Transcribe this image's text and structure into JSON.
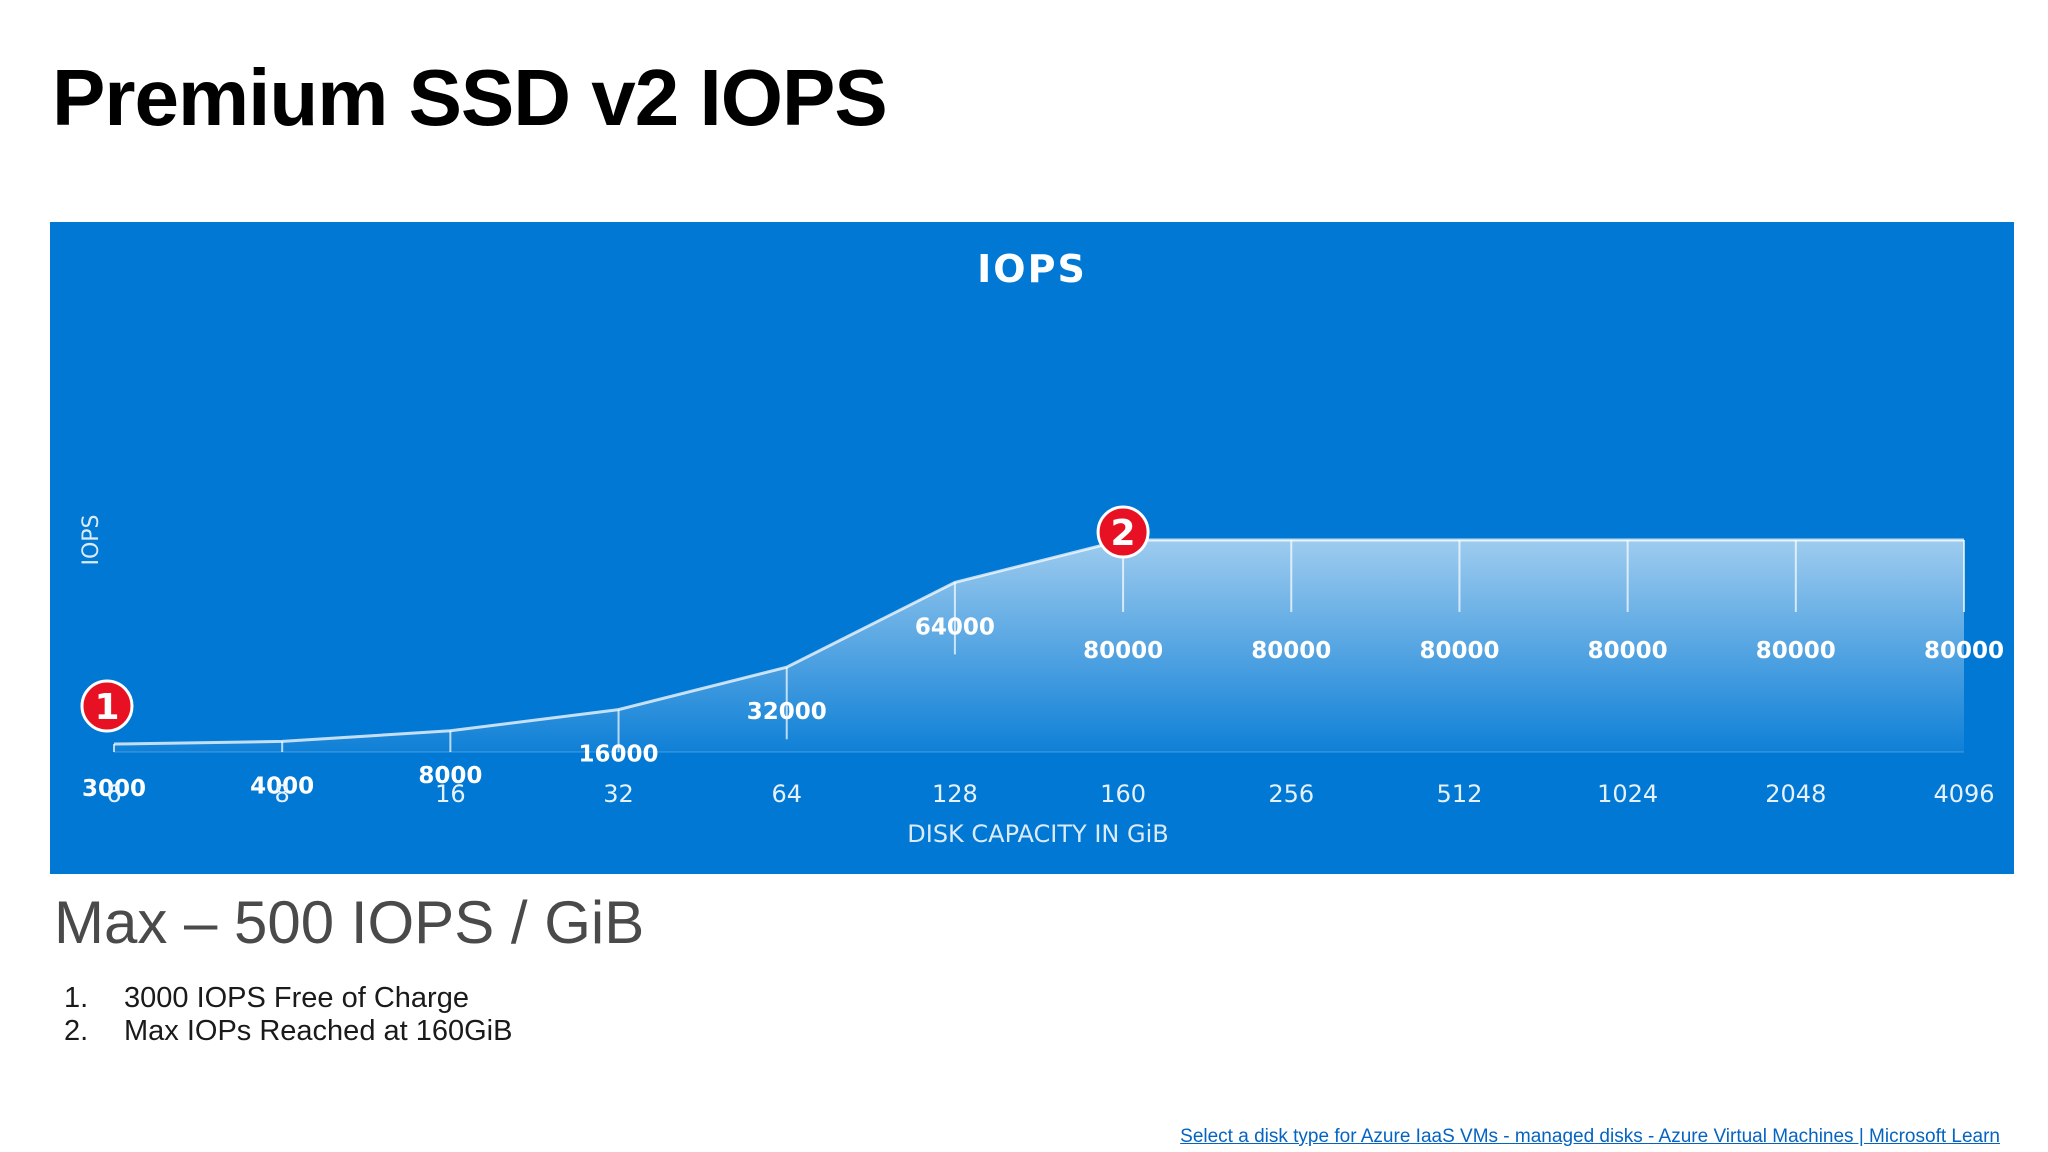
{
  "slide": {
    "title": "Premium SSD v2 IOPS",
    "subtitle": "Max – 500 IOPS / GiB",
    "notes": [
      {
        "number": "1.",
        "text": "3000 IOPS Free of Charge"
      },
      {
        "number": "2.",
        "text": "Max IOPs Reached at 160GiB"
      }
    ],
    "source_link": "Select a disk type for Azure IaaS VMs - managed disks - Azure Virtual Machines | Microsoft Learn"
  },
  "colors": {
    "panel": "#0078d4",
    "marker": "#e81123",
    "text_on_panel": "#ffffff"
  },
  "chart_data": {
    "type": "area",
    "title": "IOPS",
    "xlabel": "DISK CAPACITY IN GiB",
    "ylabel": "IOPS",
    "categories": [
      "6",
      "8",
      "16",
      "32",
      "64",
      "128",
      "160",
      "256",
      "512",
      "1024",
      "2048",
      "4096"
    ],
    "series": [
      {
        "name": "IOPS",
        "values": [
          3000,
          4000,
          8000,
          16000,
          32000,
          64000,
          80000,
          80000,
          80000,
          80000,
          80000,
          80000
        ]
      }
    ],
    "ylim": [
      0,
      80000
    ],
    "grid": false,
    "annotations": [
      {
        "label": "1",
        "category_index": 0,
        "text": "3000 IOPS Free of Charge"
      },
      {
        "label": "2",
        "category_index": 6,
        "text": "Max IOPs Reached at 160GiB"
      }
    ]
  }
}
